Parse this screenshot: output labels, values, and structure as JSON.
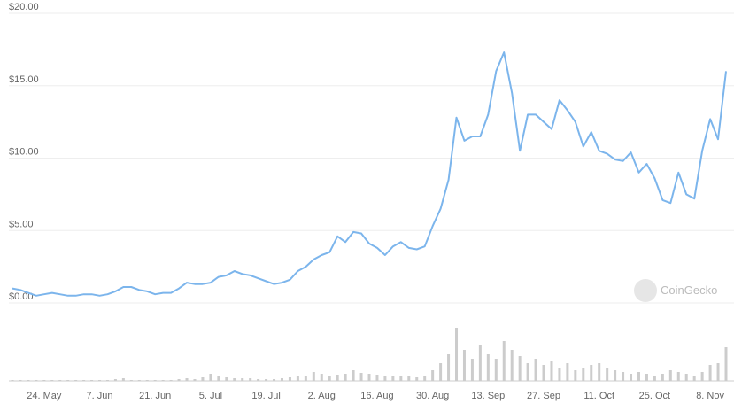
{
  "chart_data": {
    "type": "line",
    "x": [
      null,
      null,
      null,
      null,
      "24. May",
      null,
      null,
      null,
      null,
      null,
      null,
      "7. Jun",
      null,
      null,
      null,
      null,
      null,
      null,
      "21. Jun",
      null,
      null,
      null,
      null,
      null,
      null,
      "5. Jul",
      null,
      null,
      null,
      null,
      null,
      null,
      "19. Jul",
      null,
      null,
      null,
      null,
      null,
      null,
      "2. Aug",
      null,
      null,
      null,
      null,
      null,
      null,
      "16. Aug",
      null,
      null,
      null,
      null,
      null,
      null,
      "30. Aug",
      null,
      null,
      null,
      null,
      null,
      null,
      "13. Sep",
      null,
      null,
      null,
      null,
      null,
      null,
      "27. Sep",
      null,
      null,
      null,
      null,
      null,
      null,
      "11. Oct",
      null,
      null,
      null,
      null,
      null,
      null,
      "25. Oct",
      null,
      null,
      null,
      null,
      null,
      null,
      "8. Nov",
      null,
      null
    ],
    "series": [
      {
        "color": "#7cb5ec",
        "values": [
          1.0,
          0.9,
          0.7,
          0.5,
          0.6,
          0.7,
          0.6,
          0.5,
          0.5,
          0.6,
          0.6,
          0.5,
          0.6,
          0.8,
          1.1,
          1.1,
          0.9,
          0.8,
          0.6,
          0.7,
          0.7,
          1.0,
          1.4,
          1.3,
          1.3,
          1.4,
          1.8,
          1.9,
          2.2,
          2.0,
          1.9,
          1.7,
          1.5,
          1.3,
          1.4,
          1.6,
          2.2,
          2.5,
          3.0,
          3.3,
          3.5,
          4.6,
          4.2,
          4.9,
          4.8,
          4.1,
          3.8,
          3.3,
          3.9,
          4.2,
          3.8,
          3.7,
          3.9,
          5.3,
          6.5,
          8.5,
          12.8,
          11.2,
          11.5,
          11.5,
          13.0,
          16.0,
          17.3,
          14.5,
          10.5,
          13.0,
          13.0,
          12.5,
          12.0,
          14.0,
          13.3,
          12.5,
          10.8,
          11.8,
          10.5,
          10.3,
          9.9,
          9.8,
          10.4,
          9.0,
          9.6,
          8.6,
          7.1,
          6.9,
          9.0,
          7.5,
          7.2,
          10.5,
          12.7,
          11.3,
          16.0
        ]
      }
    ],
    "ylim": [
      0,
      20
    ],
    "yticks": [
      {
        "value": 0,
        "label": "$0.00"
      },
      {
        "value": 5,
        "label": "$5.00"
      },
      {
        "value": 10,
        "label": "$10.00"
      },
      {
        "value": 15,
        "label": "$15.00"
      },
      {
        "value": 20,
        "label": "$20.00"
      }
    ],
    "grid": true,
    "volume": {
      "color": "#cccccc",
      "ylim": [
        0,
        70
      ],
      "values": [
        1,
        1,
        1,
        1,
        1,
        1,
        1,
        1,
        1,
        1,
        1,
        1,
        1,
        2,
        3,
        1,
        1,
        1,
        1,
        1,
        1,
        2,
        3,
        2,
        4,
        8,
        6,
        4,
        3,
        3,
        3,
        2,
        2,
        2,
        3,
        4,
        5,
        6,
        10,
        8,
        6,
        7,
        8,
        12,
        9,
        8,
        7,
        6,
        5,
        6,
        5,
        4,
        5,
        12,
        20,
        30,
        60,
        35,
        25,
        40,
        30,
        25,
        45,
        35,
        28,
        20,
        25,
        18,
        22,
        15,
        20,
        12,
        15,
        18,
        20,
        14,
        12,
        10,
        8,
        10,
        8,
        6,
        8,
        12,
        10,
        8,
        6,
        10,
        18,
        20,
        38
      ]
    },
    "watermark": "CoinGecko"
  }
}
